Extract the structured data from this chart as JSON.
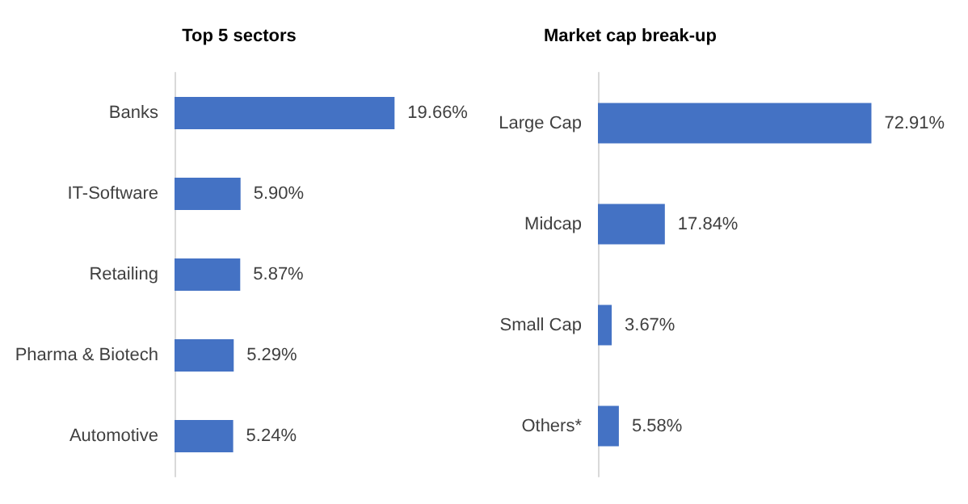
{
  "chart_data": [
    {
      "type": "bar",
      "orientation": "horizontal",
      "title": "Top 5 sectors",
      "categories": [
        "Banks",
        "IT-Software",
        "Retailing",
        "Pharma & Biotech",
        "Automotive"
      ],
      "values": [
        19.66,
        5.9,
        5.87,
        5.29,
        5.24
      ],
      "value_labels": [
        "19.66%",
        "5.90%",
        "5.87%",
        "5.29%",
        "5.24%"
      ],
      "color": "#4472c4"
    },
    {
      "type": "bar",
      "orientation": "horizontal",
      "title": "Market cap break-up",
      "categories": [
        "Large Cap",
        "Midcap",
        "Small Cap",
        "Others*"
      ],
      "values": [
        72.91,
        17.84,
        3.67,
        5.58
      ],
      "value_labels": [
        "72.91%",
        "17.84%",
        "3.67%",
        "5.58%"
      ],
      "color": "#4472c4"
    }
  ]
}
